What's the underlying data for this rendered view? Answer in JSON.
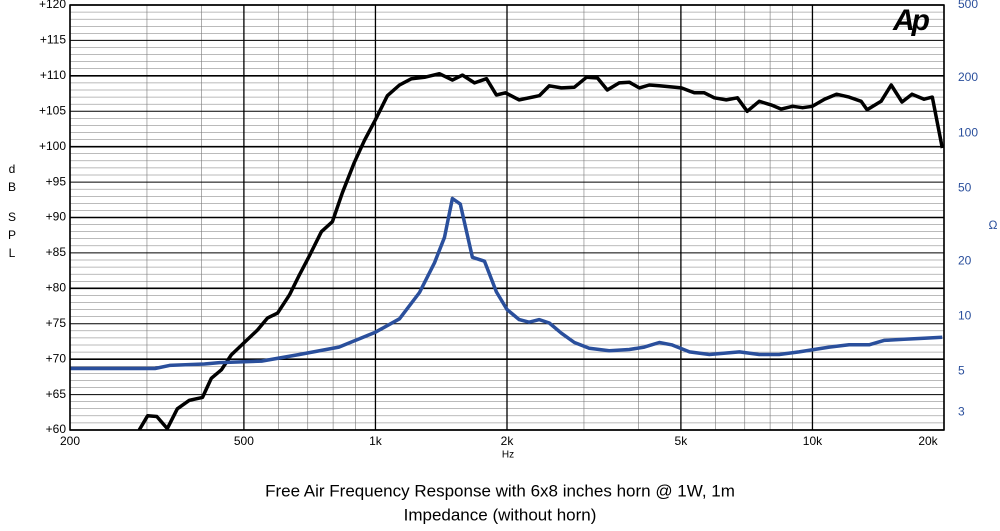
{
  "chart_data": {
    "type": "line",
    "title": "Free Air Frequency Response with 6x8 inches horn @ 1W, 1m",
    "subtitle": "Impedance (without horn)",
    "logo": "Ap",
    "x_label": "Hz",
    "y_label": [
      "d",
      "B",
      "S",
      "P",
      "L"
    ],
    "y2_label": "Ω",
    "x_scale": "log",
    "y2_scale": "log",
    "grid": true,
    "xlim": [
      200,
      20000
    ],
    "xticks": [
      {
        "value": 200,
        "label": "200"
      },
      {
        "value": 500,
        "label": "500"
      },
      {
        "value": 1000,
        "label": "1k"
      },
      {
        "value": 2000,
        "label": "2k"
      },
      {
        "value": 5000,
        "label": "5k"
      },
      {
        "value": 10000,
        "label": "10k"
      },
      {
        "value": 20000,
        "label": "20k"
      }
    ],
    "xticks_minor": [
      300,
      400,
      600,
      700,
      800,
      900,
      3000,
      4000,
      6000,
      7000,
      8000,
      9000
    ],
    "ylim": [
      60,
      120
    ],
    "yticks": [
      {
        "value": 60,
        "label": "+60"
      },
      {
        "value": 65,
        "label": "+65"
      },
      {
        "value": 70,
        "label": "+70"
      },
      {
        "value": 75,
        "label": "+75"
      },
      {
        "value": 80,
        "label": "+80"
      },
      {
        "value": 85,
        "label": "+85"
      },
      {
        "value": 90,
        "label": "+90"
      },
      {
        "value": 95,
        "label": "+95"
      },
      {
        "value": 100,
        "label": "+100"
      },
      {
        "value": 105,
        "label": "+105"
      },
      {
        "value": 110,
        "label": "+110"
      },
      {
        "value": 115,
        "label": "+115"
      },
      {
        "value": 120,
        "label": "+120"
      }
    ],
    "yticks_minor": [
      61,
      62,
      63,
      64,
      66,
      67,
      68,
      69,
      71,
      72,
      73,
      74,
      76,
      77,
      78,
      79,
      81,
      82,
      83,
      84,
      86,
      87,
      88,
      89,
      91,
      92,
      93,
      94,
      96,
      97,
      98,
      99,
      101,
      102,
      103,
      104,
      106,
      107,
      108,
      109,
      111,
      112,
      113,
      114,
      116,
      117,
      118,
      119
    ],
    "y2lim": [
      2.4,
      500
    ],
    "y2ticks": [
      3,
      5,
      10,
      20,
      50,
      100,
      200,
      500
    ],
    "series": [
      {
        "color": "#000000",
        "axis": "y",
        "x": [
          288,
          301,
          316,
          334,
          352,
          375,
          402,
          421,
          444,
          468,
          500,
          537,
          566,
          597,
          636,
          670,
          706,
          752,
          797,
          840,
          895,
          944,
          1000,
          1065,
          1135,
          1209,
          1295,
          1401,
          1500,
          1582,
          1685,
          1795,
          1891,
          1983,
          2133,
          2371,
          2500,
          2664,
          2852,
          3040,
          3222,
          3393,
          3613,
          3809,
          4015,
          4233,
          4463,
          5013,
          5365,
          5656,
          5962,
          6351,
          6735,
          7092,
          7552,
          8043,
          8480,
          9006,
          9494,
          10000,
          10658,
          11352,
          12130,
          12920,
          13337,
          14360,
          15140,
          16030,
          16900,
          18010,
          18800,
          19820
        ],
        "values": [
          60,
          62,
          61.9,
          60.2,
          63,
          64.2,
          64.6,
          67.3,
          68.5,
          70.6,
          72.3,
          74.1,
          75.8,
          76.5,
          79.1,
          81.9,
          84.6,
          88,
          89.4,
          93.5,
          97.8,
          100.9,
          103.8,
          107.2,
          108.7,
          109.6,
          109.8,
          110.3,
          109.4,
          110.1,
          109,
          109.6,
          107.3,
          107.6,
          106.6,
          107.2,
          108.6,
          108.3,
          108.4,
          109.8,
          109.7,
          108,
          109,
          109.1,
          108.3,
          108.7,
          108.6,
          108.3,
          107.6,
          107.6,
          106.9,
          106.6,
          106.9,
          105,
          106.4,
          105.9,
          105.3,
          105.7,
          105.5,
          105.7,
          106.7,
          107.4,
          107,
          106.4,
          105.2,
          106.4,
          108.7,
          106.3,
          107.4,
          106.7,
          107,
          99.8
        ]
      },
      {
        "color": "#2a4f9c",
        "axis": "y2",
        "x": [
          200,
          313,
          338,
          406,
          440,
          549,
          670,
          825,
          1000,
          1135,
          1261,
          1365,
          1439,
          1500,
          1564,
          1667,
          1776,
          1891,
          2000,
          2133,
          2247,
          2371,
          2500,
          2664,
          2852,
          3084,
          3429,
          3809,
          4123,
          4463,
          4760,
          5232,
          5809,
          6808,
          7552,
          8391,
          9322,
          10930,
          12130,
          13480,
          14580,
          16200,
          18000,
          19820
        ],
        "values": [
          5.2,
          5.2,
          5.4,
          5.5,
          5.6,
          5.7,
          6.2,
          6.8,
          8.2,
          9.7,
          13.5,
          19.6,
          27,
          44,
          41,
          21,
          20,
          13.6,
          10.9,
          9.6,
          9.3,
          9.6,
          9.2,
          8.1,
          7.2,
          6.7,
          6.5,
          6.6,
          6.8,
          7.2,
          7,
          6.4,
          6.2,
          6.4,
          6.2,
          6.2,
          6.4,
          6.8,
          7,
          7,
          7.4,
          7.5,
          7.6,
          7.7
        ]
      }
    ]
  }
}
